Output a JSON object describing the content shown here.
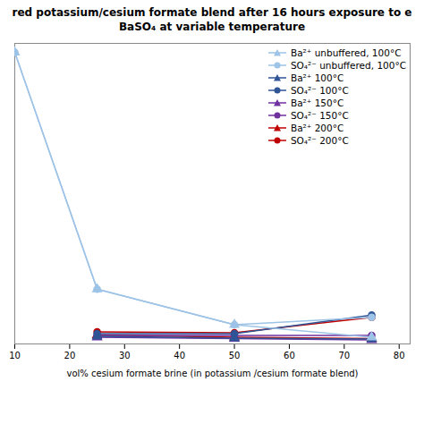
{
  "chart_data": {
    "type": "line",
    "title": "red potassium/cesium formate blend after 16 hours exposure to e",
    "subtitle": "BaSO₄ at variable temperature",
    "xlabel": "vol% cesium formate brine (in potassium /cesium formate blend)",
    "xlim": [
      10,
      82
    ],
    "xticks": [
      10,
      20,
      30,
      40,
      50,
      60,
      70,
      80
    ],
    "ylim": [
      -0.05,
      6.7
    ],
    "yticks": [],
    "tick_labels": "x",
    "grid": false,
    "legend": "upper right",
    "series": [
      {
        "name": "Ba²⁺ unbuffered, 100°C",
        "color": "#9dc3e6",
        "marker": "triangle",
        "line_style": "solid",
        "x": [
          10,
          25,
          50,
          75
        ],
        "values": [
          6.5,
          1.18,
          0.38,
          0.1
        ]
      },
      {
        "name": "SO₄²⁻ unbuffered, 100°C",
        "color": "#9dc3e6",
        "marker": "circle",
        "line_style": "solid",
        "x": [
          10,
          25,
          50,
          75
        ],
        "values": [
          6.5,
          1.18,
          0.38,
          0.55
        ]
      },
      {
        "name": "Ba²⁺ 100°C",
        "color": "#2f5597",
        "marker": "triangle",
        "line_style": "solid",
        "x": [
          25,
          50,
          75
        ],
        "values": [
          0.12,
          0.08,
          0.06
        ]
      },
      {
        "name": "SO₄²⁻ 100°C",
        "color": "#2f5597",
        "marker": "circle",
        "line_style": "solid",
        "x": [
          25,
          50,
          75
        ],
        "values": [
          0.18,
          0.18,
          0.6
        ]
      },
      {
        "name": "Ba²⁺ 150°C",
        "color": "#7030a0",
        "marker": "triangle",
        "line_style": "solid",
        "x": [
          25,
          50,
          75
        ],
        "values": [
          0.1,
          0.07,
          0.04
        ]
      },
      {
        "name": "SO₄²⁻ 150°C",
        "color": "#7030a0",
        "marker": "circle",
        "line_style": "solid",
        "x": [
          25,
          50,
          75
        ],
        "values": [
          0.14,
          0.14,
          0.14
        ]
      },
      {
        "name": "Ba²⁺ 200°C",
        "color": "#c00000",
        "marker": "triangle",
        "line_style": "solid",
        "x": [
          25,
          50,
          75
        ],
        "values": [
          0.15,
          0.1,
          0.07
        ]
      },
      {
        "name": "SO₄²⁻ 200°C",
        "color": "#c00000",
        "marker": "circle",
        "line_style": "solid",
        "x": [
          25,
          50,
          75
        ],
        "values": [
          0.22,
          0.2,
          0.55
        ]
      }
    ]
  }
}
